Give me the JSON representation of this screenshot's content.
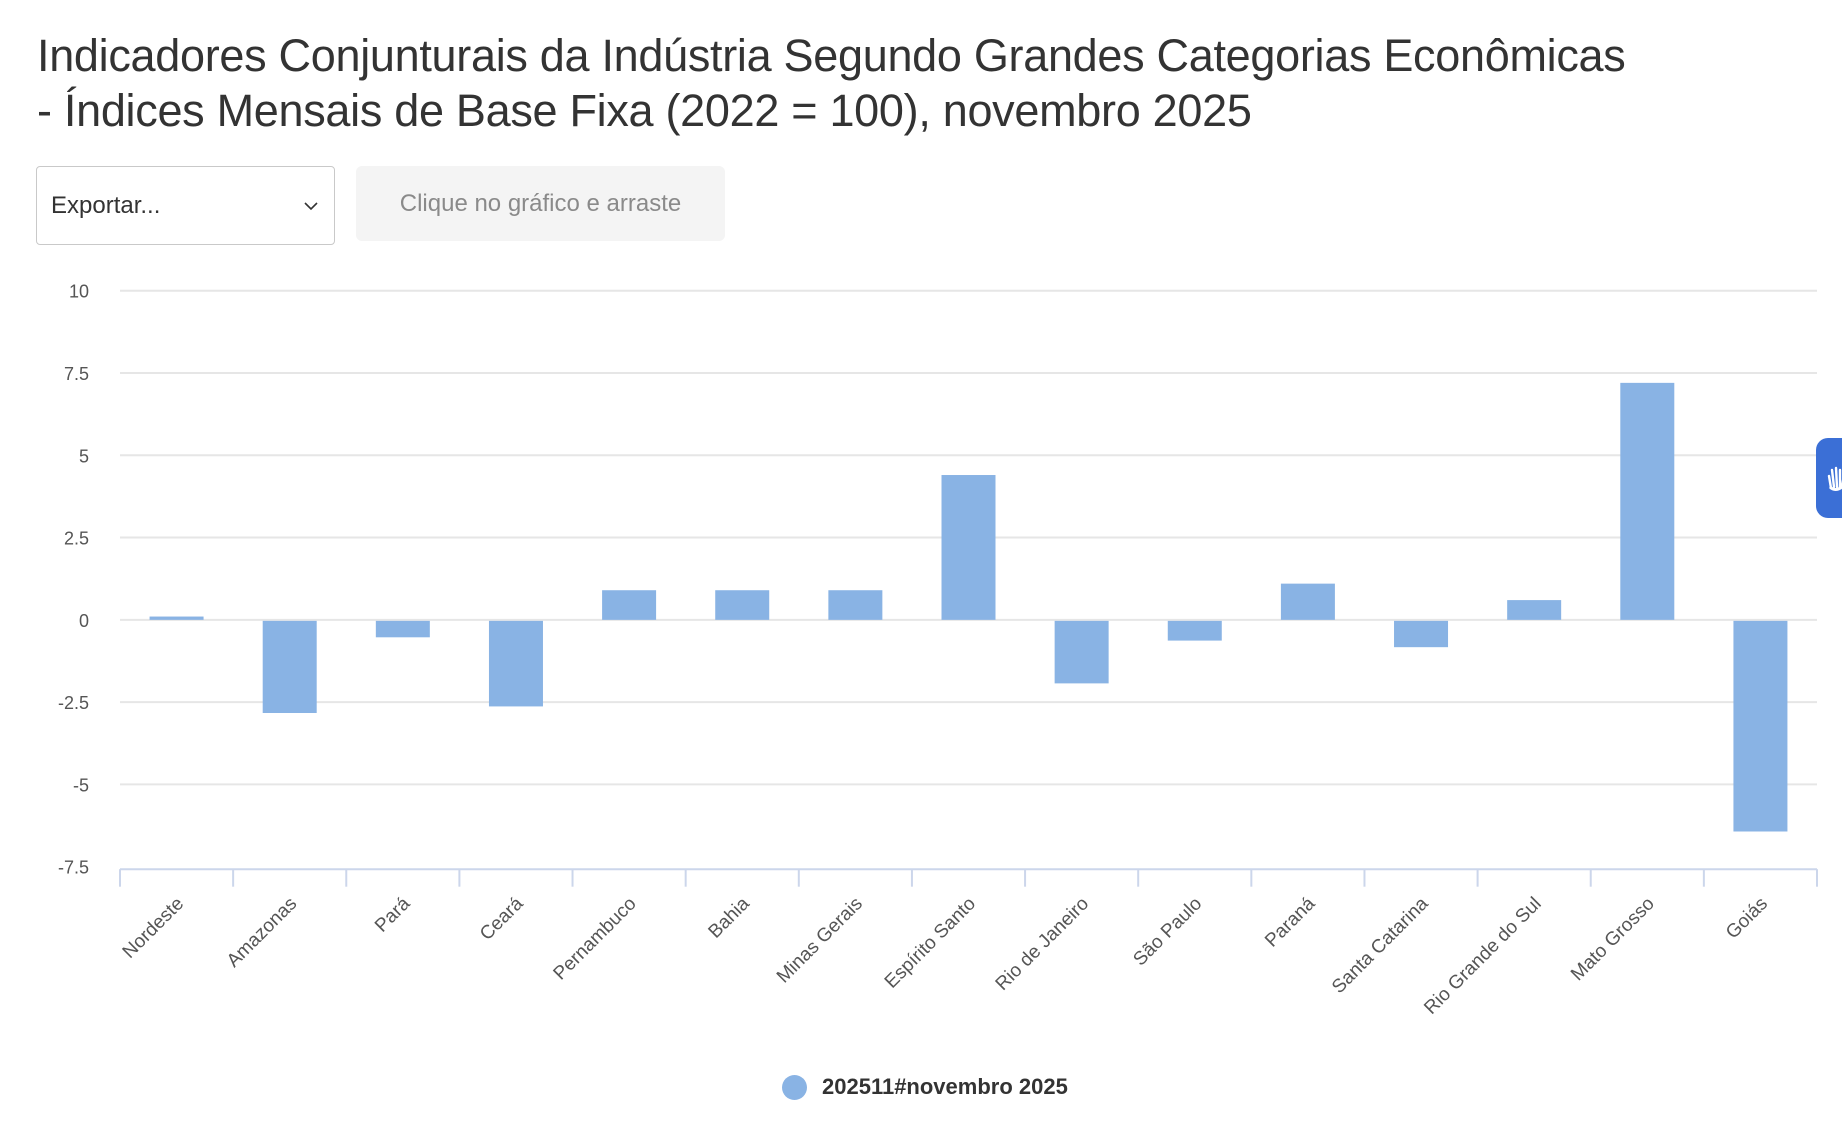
{
  "title": {
    "line1": "Indicadores Conjunturais da Indústria Segundo Grandes Categorias Econômicas",
    "line2": "- Índices Mensais de Base Fixa (2022 = 100), novembro 2025"
  },
  "controls": {
    "export_label": "Exportar...",
    "export_icon": "chevron-down-icon",
    "hint_text": "Clique no gráfico e arraste"
  },
  "accessibility_widget": {
    "icon": "hand-icon",
    "color": "#3b6fd6"
  },
  "legend": {
    "label": "202511#novembro 2025",
    "color": "#89b3e4"
  },
  "colors": {
    "bar": "#89b3e4",
    "grid": "#e6e6e6",
    "axis": "#ccd6eb",
    "tick_label": "#555555"
  },
  "chart_data": {
    "type": "bar",
    "title": "Indicadores Conjunturais da Indústria Segundo Grandes Categorias Econômicas - Índices Mensais de Base Fixa (2022 = 100), novembro 2025",
    "xlabel": "",
    "ylabel": "",
    "categories": [
      "Nordeste",
      "Amazonas",
      "Pará",
      "Ceará",
      "Pernambuco",
      "Bahia",
      "Minas Gerais",
      "Espírito Santo",
      "Rio de Janeiro",
      "São Paulo",
      "Paraná",
      "Santa Catarina",
      "Rio Grande do Sul",
      "Mato Grosso",
      "Goiás"
    ],
    "series": [
      {
        "name": "202511#novembro 2025",
        "values": [
          0.1,
          -2.8,
          -0.5,
          -2.6,
          0.9,
          0.9,
          0.9,
          4.4,
          -1.9,
          -0.6,
          1.1,
          -0.8,
          0.6,
          7.2,
          -6.4
        ]
      }
    ],
    "ylim": [
      -7.5,
      10
    ],
    "yticks": [
      10,
      7.5,
      5,
      2.5,
      0,
      -2.5,
      -5,
      -7.5
    ],
    "ytick_labels": [
      "10",
      "7.5",
      "5",
      "2.5",
      "0",
      "-2.5",
      "-5",
      "-7.5"
    ],
    "grid": true,
    "legend_position": "bottom"
  }
}
